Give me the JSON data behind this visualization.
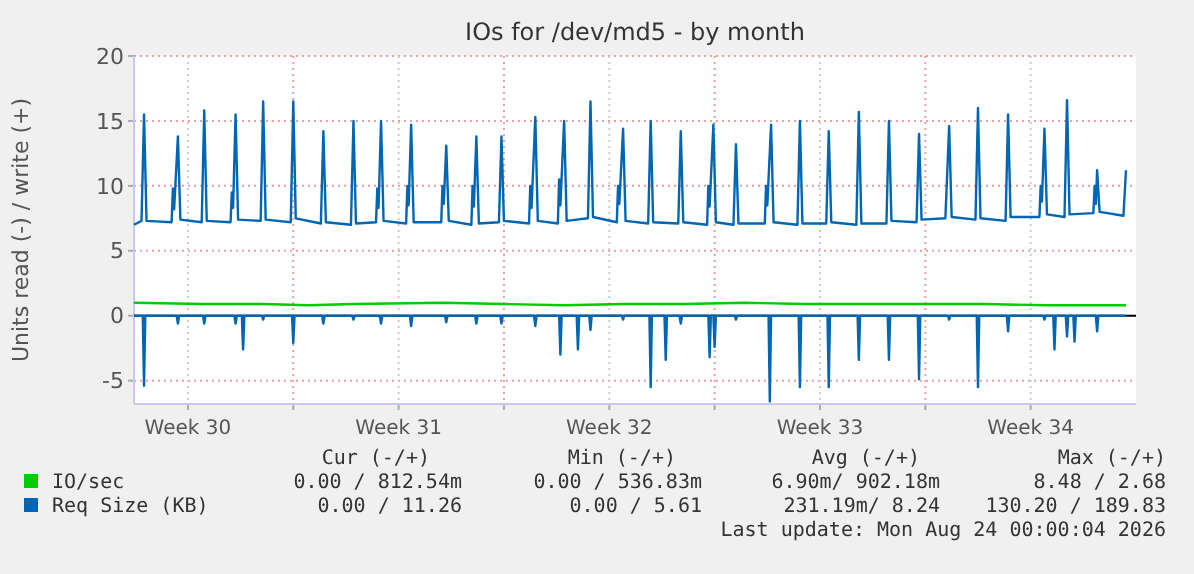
{
  "chart_data": {
    "type": "line",
    "title": "IOs for /dev/md5 - by month",
    "ylabel": "Units read (-) / write (+)",
    "xlim": [
      "2026-07-21T17:00",
      "2026-08-24T00:00"
    ],
    "xticks": [
      {
        "value": "2026-07-23T12:00",
        "label": "Week 30"
      },
      {
        "value": "2026-07-27T00:00",
        "label": null
      },
      {
        "value": "2026-07-30T12:00",
        "label": "Week 31"
      },
      {
        "value": "2026-08-03T00:00",
        "label": null
      },
      {
        "value": "2026-08-06T12:00",
        "label": "Week 32"
      },
      {
        "value": "2026-08-10T00:00",
        "label": null
      },
      {
        "value": "2026-08-13T12:00",
        "label": "Week 33"
      },
      {
        "value": "2026-08-17T00:00",
        "label": null
      },
      {
        "value": "2026-08-20T12:00",
        "label": "Week 34"
      }
    ],
    "ylim": [
      -6.8,
      20
    ],
    "yticks": [
      -5,
      0,
      5,
      10,
      15,
      20
    ],
    "grid": true,
    "legend": "bottom",
    "ref_lines": [
      {
        "axis": "y",
        "value": 0,
        "color": "#000000"
      }
    ],
    "series": [
      {
        "name": "IO/sec",
        "color": "#00cc00",
        "x": [
          "2026-07-21T17:00",
          "2026-07-24T00:00",
          "2026-07-26T00:00",
          "2026-07-27T12:00",
          "2026-07-29T00:00",
          "2026-08-01T00:00",
          "2026-08-03T00:00",
          "2026-08-05T00:00",
          "2026-08-07T00:00",
          "2026-08-09T00:00",
          "2026-08-11T00:00",
          "2026-08-13T00:00",
          "2026-08-15T00:00",
          "2026-08-17T00:00",
          "2026-08-19T00:00",
          "2026-08-21T00:00",
          "2026-08-23T16:00"
        ],
        "values": [
          1.0,
          0.9,
          0.9,
          0.8,
          0.9,
          1.0,
          0.9,
          0.8,
          0.9,
          0.9,
          1.0,
          0.9,
          0.9,
          0.9,
          0.9,
          0.8,
          0.8
        ]
      },
      {
        "name": "Req Size (KB)",
        "color": "#0066b3",
        "x": [
          "2026-07-21T17:00",
          "2026-07-21T23:00",
          "2026-07-22T01:00",
          "2026-07-22T03:00",
          "2026-07-22T23:00",
          "2026-07-23T00:00",
          "2026-07-23T01:00",
          "2026-07-23T04:00",
          "2026-07-23T06:00",
          "2026-07-23T23:00",
          "2026-07-24T01:00",
          "2026-07-24T03:00",
          "2026-07-24T22:00",
          "2026-07-24T23:00",
          "2026-07-25T00:00",
          "2026-07-25T02:00",
          "2026-07-25T04:00",
          "2026-07-25T22:00",
          "2026-07-26T00:00",
          "2026-07-26T02:00",
          "2026-07-26T22:00",
          "2026-07-27T00:00",
          "2026-07-27T02:00",
          "2026-07-27T22:00",
          "2026-07-28T00:00",
          "2026-07-28T02:00",
          "2026-07-28T22:00",
          "2026-07-29T00:00",
          "2026-07-29T02:00",
          "2026-07-29T18:00",
          "2026-07-29T19:00",
          "2026-07-29T20:00",
          "2026-07-29T22:00",
          "2026-07-30T00:00",
          "2026-07-30T18:00",
          "2026-07-30T19:00",
          "2026-07-30T20:00",
          "2026-07-30T22:00",
          "2026-07-31T00:00",
          "2026-07-31T22:00",
          "2026-07-31T23:00",
          "2026-08-01T00:00",
          "2026-08-01T02:00",
          "2026-08-01T04:00",
          "2026-08-01T22:00",
          "2026-08-01T23:00",
          "2026-08-02T00:00",
          "2026-08-02T02:00",
          "2026-08-02T04:00",
          "2026-08-02T20:00",
          "2026-08-02T22:00",
          "2026-08-03T00:00",
          "2026-08-03T20:00",
          "2026-08-03T21:00",
          "2026-08-03T22:00",
          "2026-08-04T01:00",
          "2026-08-04T03:00",
          "2026-08-04T19:00",
          "2026-08-04T20:00",
          "2026-08-04T21:00",
          "2026-08-05T00:00",
          "2026-08-05T02:00",
          "2026-08-05T19:00",
          "2026-08-05T21:00",
          "2026-08-05T23:00",
          "2026-08-06T18:00",
          "2026-08-06T19:00",
          "2026-08-06T20:00",
          "2026-08-06T23:00",
          "2026-08-07T01:00",
          "2026-08-07T19:00",
          "2026-08-07T21:00",
          "2026-08-07T23:00",
          "2026-08-08T19:00",
          "2026-08-08T21:00",
          "2026-08-08T23:00",
          "2026-08-09T18:00",
          "2026-08-09T19:00",
          "2026-08-09T20:00",
          "2026-08-09T23:00",
          "2026-08-10T01:00",
          "2026-08-10T15:00",
          "2026-08-10T17:00",
          "2026-08-10T19:00",
          "2026-08-11T16:00",
          "2026-08-11T17:00",
          "2026-08-11T18:00",
          "2026-08-11T21:00",
          "2026-08-11T23:00",
          "2026-08-12T18:00",
          "2026-08-12T20:00",
          "2026-08-12T22:00",
          "2026-08-13T17:00",
          "2026-08-13T19:00",
          "2026-08-13T21:00",
          "2026-08-14T17:00",
          "2026-08-14T19:00",
          "2026-08-14T21:00",
          "2026-08-15T17:00",
          "2026-08-15T19:00",
          "2026-08-15T21:00",
          "2026-08-16T17:00",
          "2026-08-16T19:00",
          "2026-08-16T21:00",
          "2026-08-17T16:00",
          "2026-08-17T19:00",
          "2026-08-17T21:00",
          "2026-08-18T16:00",
          "2026-08-18T18:00",
          "2026-08-18T20:00",
          "2026-08-19T16:00",
          "2026-08-19T18:00",
          "2026-08-19T20:00",
          "2026-08-20T19:00",
          "2026-08-20T20:00",
          "2026-08-20T21:00",
          "2026-08-20T23:00",
          "2026-08-21T01:00",
          "2026-08-21T15:00",
          "2026-08-21T17:00",
          "2026-08-21T19:00",
          "2026-08-22T14:00",
          "2026-08-22T15:00",
          "2026-08-22T16:00",
          "2026-08-22T17:00",
          "2026-08-22T19:00",
          "2026-08-23T14:00",
          "2026-08-23T16:00"
        ],
        "values": [
          7.0,
          7.3,
          15.5,
          7.3,
          7.2,
          9.8,
          8.2,
          13.8,
          7.4,
          7.2,
          15.8,
          7.3,
          7.2,
          9.5,
          8.3,
          15.5,
          7.4,
          7.3,
          16.5,
          7.4,
          7.2,
          16.5,
          7.5,
          7.1,
          14.2,
          7.2,
          7.0,
          15.0,
          7.1,
          7.2,
          9.8,
          8.3,
          15.0,
          7.3,
          7.1,
          10.0,
          8.5,
          14.7,
          7.2,
          7.2,
          10.0,
          8.6,
          13.1,
          7.3,
          7.0,
          10.0,
          8.4,
          13.8,
          7.1,
          7.2,
          13.8,
          7.3,
          7.1,
          10.0,
          8.3,
          15.3,
          7.3,
          7.1,
          10.5,
          8.5,
          15.0,
          7.3,
          7.5,
          16.5,
          7.6,
          7.2,
          10.0,
          8.6,
          14.4,
          7.3,
          7.1,
          15.0,
          7.2,
          7.1,
          14.2,
          7.2,
          7.0,
          10.0,
          8.4,
          14.7,
          7.2,
          7.0,
          13.2,
          7.1,
          7.1,
          10.0,
          8.5,
          14.7,
          7.2,
          7.0,
          15.0,
          7.1,
          7.1,
          14.2,
          7.2,
          7.0,
          15.7,
          7.1,
          7.1,
          15.0,
          7.3,
          7.2,
          14.0,
          7.4,
          7.5,
          14.6,
          7.6,
          7.4,
          16.0,
          7.5,
          7.3,
          15.5,
          7.6,
          7.6,
          10.0,
          8.8,
          14.4,
          7.8,
          7.6,
          16.6,
          7.8,
          7.9,
          10.0,
          8.6,
          11.2,
          8.0,
          7.7,
          11.2
        ]
      },
      {
        "color": "#0066b3",
        "x": [
          "2026-07-21T17:00",
          "2026-07-22T00:00",
          "2026-07-22T01:00",
          "2026-07-22T02:00",
          "2026-07-23T03:00",
          "2026-07-23T04:00",
          "2026-07-23T05:00",
          "2026-07-24T00:00",
          "2026-07-24T01:00",
          "2026-07-24T02:00",
          "2026-07-25T01:00",
          "2026-07-25T02:00",
          "2026-07-25T03:00",
          "2026-07-25T07:00",
          "2026-07-25T08:00",
          "2026-07-25T09:00",
          "2026-07-25T23:00",
          "2026-07-26T00:00",
          "2026-07-26T01:00",
          "2026-07-26T23:00",
          "2026-07-27T00:00",
          "2026-07-27T01:00",
          "2026-07-27T23:00",
          "2026-07-28T00:00",
          "2026-07-28T01:00",
          "2026-07-28T23:00",
          "2026-07-29T00:00",
          "2026-07-29T01:00",
          "2026-07-29T21:00",
          "2026-07-29T22:00",
          "2026-07-29T23:00",
          "2026-07-30T21:00",
          "2026-07-30T22:00",
          "2026-07-30T23:00",
          "2026-08-01T01:00",
          "2026-08-01T02:00",
          "2026-08-01T03:00",
          "2026-08-02T01:00",
          "2026-08-02T02:00",
          "2026-08-02T03:00",
          "2026-08-02T21:00",
          "2026-08-02T22:00",
          "2026-08-02T23:00",
          "2026-08-04T00:00",
          "2026-08-04T01:00",
          "2026-08-04T02:00",
          "2026-08-04T20:00",
          "2026-08-04T21:00",
          "2026-08-04T22:00",
          "2026-08-05T10:00",
          "2026-08-05T11:00",
          "2026-08-05T12:00",
          "2026-08-05T20:00",
          "2026-08-05T21:00",
          "2026-08-05T22:00",
          "2026-08-06T22:00",
          "2026-08-06T23:00",
          "2026-08-07T00:00",
          "2026-08-07T20:00",
          "2026-08-07T21:00",
          "2026-08-07T22:00",
          "2026-08-08T08:00",
          "2026-08-08T09:00",
          "2026-08-08T10:00",
          "2026-08-08T20:00",
          "2026-08-08T21:00",
          "2026-08-08T22:00",
          "2026-08-09T19:00",
          "2026-08-09T20:00",
          "2026-08-09T21:00",
          "2026-08-09T23:00",
          "2026-08-10T00:00",
          "2026-08-10T01:00",
          "2026-08-10T16:00",
          "2026-08-10T17:00",
          "2026-08-10T18:00",
          "2026-08-11T19:00",
          "2026-08-11T20:00",
          "2026-08-11T21:00",
          "2026-08-12T19:00",
          "2026-08-12T20:00",
          "2026-08-12T21:00",
          "2026-08-13T18:00",
          "2026-08-13T19:00",
          "2026-08-13T20:00",
          "2026-08-14T18:00",
          "2026-08-14T19:00",
          "2026-08-14T20:00",
          "2026-08-15T18:00",
          "2026-08-15T19:00",
          "2026-08-15T20:00",
          "2026-08-16T18:00",
          "2026-08-16T19:00",
          "2026-08-16T20:00",
          "2026-08-17T18:00",
          "2026-08-17T19:00",
          "2026-08-17T20:00",
          "2026-08-18T17:00",
          "2026-08-18T18:00",
          "2026-08-18T19:00",
          "2026-08-19T17:00",
          "2026-08-19T18:00",
          "2026-08-19T19:00",
          "2026-08-20T22:00",
          "2026-08-20T23:00",
          "2026-08-21T00:00",
          "2026-08-21T06:00",
          "2026-08-21T07:00",
          "2026-08-21T08:00",
          "2026-08-21T16:00",
          "2026-08-21T17:00",
          "2026-08-21T18:00",
          "2026-08-21T22:00",
          "2026-08-21T23:00",
          "2026-08-22T00:00",
          "2026-08-22T16:00",
          "2026-08-22T17:00",
          "2026-08-22T18:00",
          "2026-08-23T16:00"
        ],
        "values": [
          0,
          0,
          -5.4,
          0,
          0,
          -0.6,
          0,
          0,
          -0.6,
          0,
          0,
          -0.6,
          0,
          0,
          -2.6,
          0,
          0,
          -0.3,
          0,
          0,
          -2.1,
          0,
          0,
          -0.6,
          0,
          0,
          -0.3,
          0,
          0,
          -0.6,
          0,
          0,
          -0.8,
          0,
          0,
          -0.5,
          0,
          0,
          -0.6,
          0,
          0,
          -0.6,
          0,
          0,
          -0.8,
          0,
          0,
          -3.0,
          0,
          0,
          -2.6,
          0,
          0,
          -1.1,
          0,
          0,
          -0.3,
          0,
          0,
          -5.5,
          0,
          0,
          -3.4,
          0,
          0,
          -0.6,
          0,
          0,
          -3.2,
          0,
          0,
          -2.4,
          0,
          0,
          -0.3,
          0,
          0,
          -6.6,
          0,
          0,
          -5.5,
          0,
          0,
          -5.5,
          0,
          0,
          -3.4,
          0,
          0,
          -3.4,
          0,
          0,
          -4.9,
          0,
          0,
          -0.3,
          0,
          0,
          -5.5,
          0,
          0,
          -1.2,
          0,
          0,
          -0.3,
          0,
          0,
          -2.6,
          0,
          0,
          -1.6,
          0,
          0,
          -2.0,
          0,
          0,
          -1.2,
          0,
          0
        ]
      }
    ],
    "annotations": [
      "Cur (-/+)",
      "Min (-/+)",
      "Avg (-/+)",
      "Max (-/+)",
      "0.00 / 812.54m",
      "0.00 / 536.83m",
      "6.90m/ 902.18m",
      "8.48 / 2.68",
      "0.00 / 11.26",
      "0.00 / 5.61",
      "231.19m/ 8.24",
      "130.20 / 189.83",
      "Last update: Mon Aug 24 00:00:04 2026"
    ]
  }
}
